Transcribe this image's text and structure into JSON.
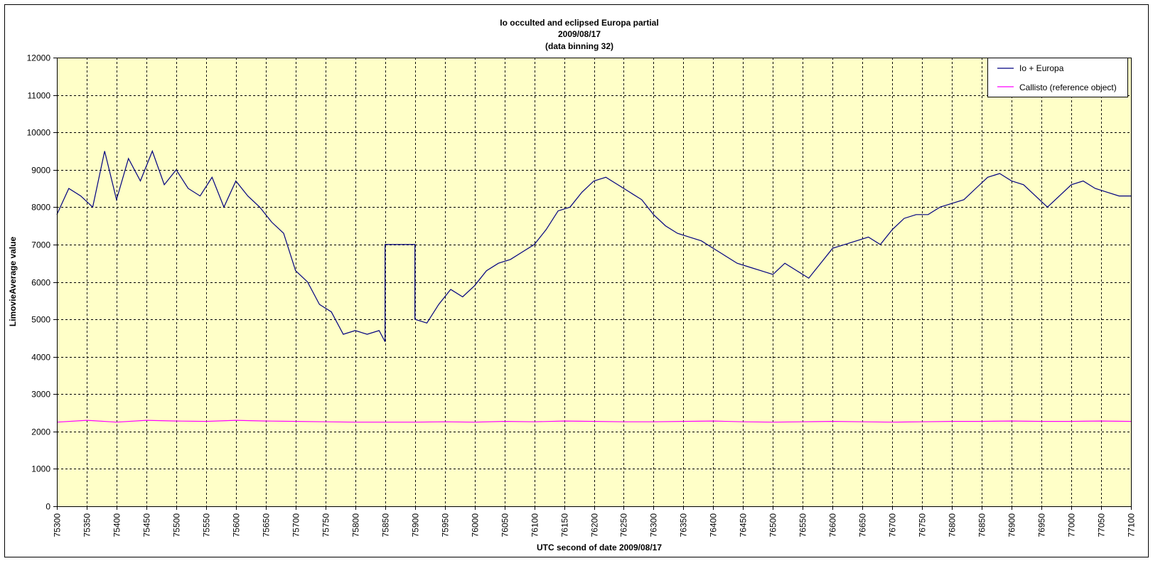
{
  "chart_data": {
    "type": "line",
    "title_lines": [
      "Io occulted and eclipsed Europa partial",
      "2009/08/17",
      "(data binning 32)"
    ],
    "xlabel": "UTC second  of date 2009/08/17",
    "ylabel": "LimovieAverage value",
    "xlim": [
      75300,
      77100
    ],
    "ylim": [
      0,
      12000
    ],
    "x_ticks": [
      75300,
      75350,
      75400,
      75450,
      75500,
      75550,
      75600,
      75650,
      75700,
      75750,
      75800,
      75850,
      75900,
      75950,
      76000,
      76050,
      76100,
      76150,
      76200,
      76250,
      76300,
      76350,
      76400,
      76450,
      76500,
      76550,
      76600,
      76650,
      76700,
      76750,
      76800,
      76850,
      76900,
      76950,
      77000,
      77050,
      77100
    ],
    "y_ticks": [
      0,
      1000,
      2000,
      3000,
      4000,
      5000,
      6000,
      7000,
      8000,
      9000,
      10000,
      11000,
      12000
    ],
    "grid": true,
    "legend_position": "top-right",
    "plot_background": "#ffffc8",
    "series": [
      {
        "name": "Io + Europa",
        "color": "#000080",
        "x": [
          75300,
          75320,
          75340,
          75360,
          75380,
          75400,
          75420,
          75440,
          75460,
          75480,
          75500,
          75520,
          75540,
          75560,
          75580,
          75600,
          75620,
          75640,
          75660,
          75680,
          75700,
          75720,
          75740,
          75760,
          75780,
          75800,
          75820,
          75840,
          75850,
          75850,
          75900,
          75900,
          75920,
          75940,
          75960,
          75980,
          76000,
          76020,
          76040,
          76060,
          76080,
          76100,
          76120,
          76140,
          76160,
          76180,
          76200,
          76220,
          76240,
          76260,
          76280,
          76300,
          76320,
          76340,
          76360,
          76380,
          76400,
          76420,
          76440,
          76460,
          76480,
          76500,
          76520,
          76540,
          76560,
          76580,
          76600,
          76620,
          76640,
          76660,
          76680,
          76700,
          76720,
          76740,
          76760,
          76780,
          76800,
          76820,
          76840,
          76860,
          76880,
          76900,
          76920,
          76940,
          76960,
          76980,
          77000,
          77020,
          77040,
          77060,
          77080,
          77100
        ],
        "y": [
          7800,
          8500,
          8300,
          8000,
          9500,
          8200,
          9300,
          8700,
          9500,
          8600,
          9000,
          8500,
          8300,
          8800,
          8000,
          8700,
          8300,
          8000,
          7600,
          7300,
          6300,
          6000,
          5400,
          5200,
          4600,
          4700,
          4600,
          4700,
          4400,
          7000,
          7000,
          5000,
          4900,
          5400,
          5800,
          5600,
          5900,
          6300,
          6500,
          6600,
          6800,
          7000,
          7400,
          7900,
          8000,
          8400,
          8700,
          8800,
          8600,
          8400,
          8200,
          7800,
          7500,
          7300,
          7200,
          7100,
          6900,
          6700,
          6500,
          6400,
          6300,
          6200,
          6500,
          6300,
          6100,
          6500,
          6900,
          7000,
          7100,
          7200,
          7000,
          7400,
          7700,
          7800,
          7800,
          8000,
          8100,
          8200,
          8500,
          8800,
          8900,
          8700,
          8600,
          8300,
          8000,
          8300,
          8600,
          8700,
          8500,
          8400,
          8300,
          8300
        ]
      },
      {
        "name": "Callisto (reference object)",
        "color": "#ff00ff",
        "x": [
          75300,
          75350,
          75400,
          75450,
          75500,
          75550,
          75600,
          75650,
          75700,
          75750,
          75800,
          75850,
          75850,
          75900,
          75900,
          75950,
          76000,
          76050,
          76100,
          76150,
          76200,
          76250,
          76300,
          76350,
          76400,
          76450,
          76500,
          76550,
          76600,
          76650,
          76700,
          76750,
          76800,
          76850,
          76900,
          76950,
          77000,
          77050,
          77100
        ],
        "y": [
          2250,
          2300,
          2250,
          2300,
          2280,
          2270,
          2300,
          2280,
          2270,
          2260,
          2250,
          2250,
          2250,
          2250,
          2250,
          2260,
          2250,
          2270,
          2260,
          2280,
          2270,
          2260,
          2260,
          2270,
          2280,
          2260,
          2250,
          2260,
          2270,
          2260,
          2250,
          2260,
          2270,
          2270,
          2280,
          2270,
          2270,
          2280,
          2270
        ]
      }
    ]
  }
}
